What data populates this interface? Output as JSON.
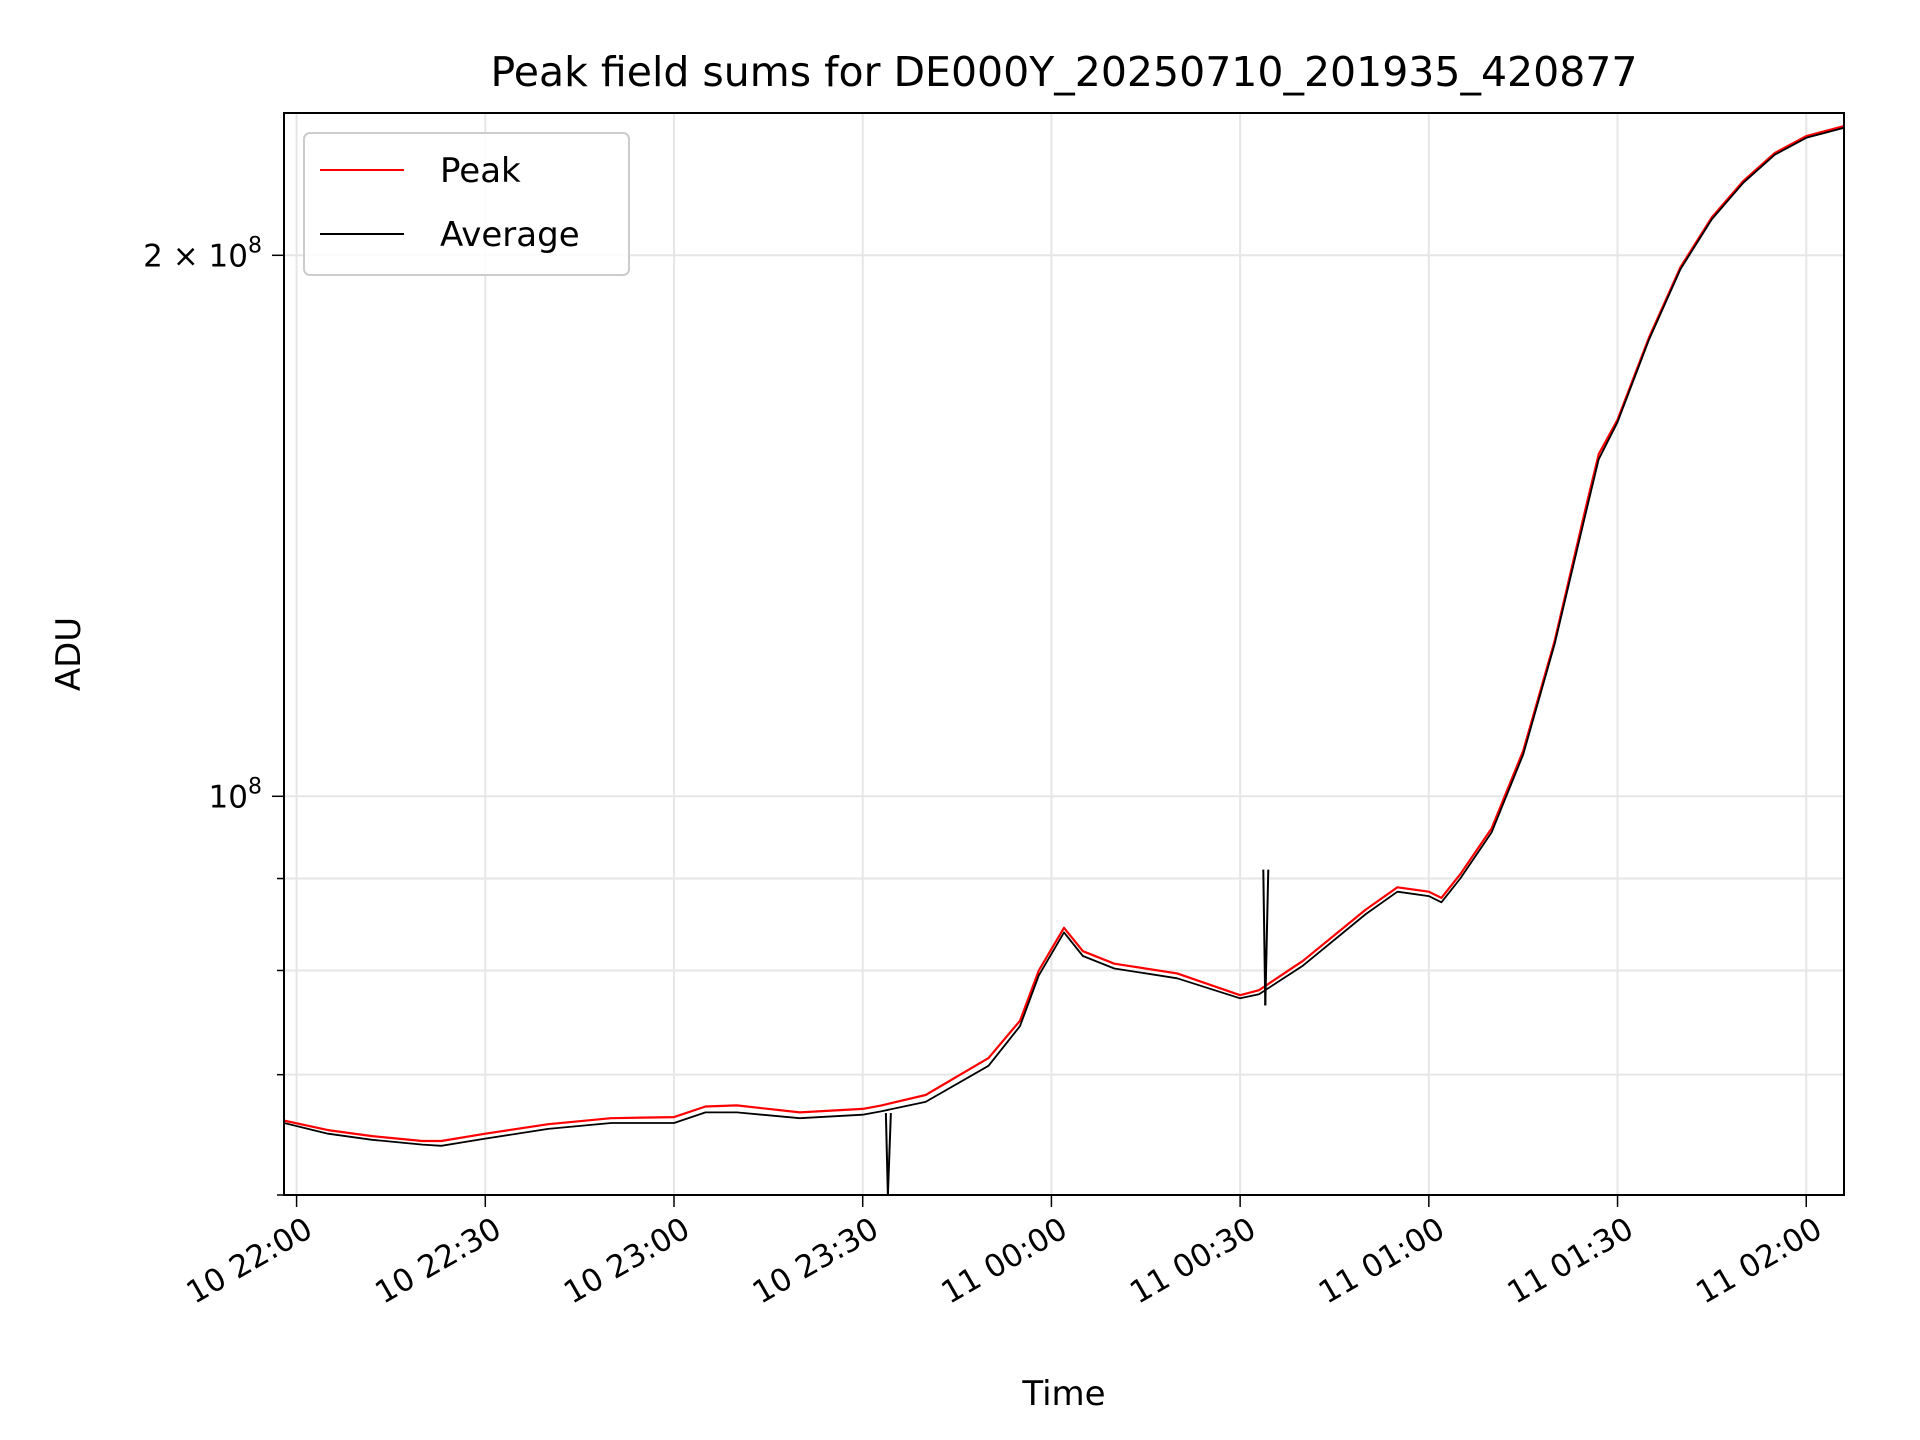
{
  "chart_data": {
    "type": "line",
    "title": "Peak field sums for DE000Y_20250710_201935_420877",
    "xlabel": "Time",
    "ylabel": "ADU",
    "y_scale": "log",
    "ylim": [
      60000000,
      240000000
    ],
    "xlim": [
      "10 21:58",
      "11 02:06"
    ],
    "grid": true,
    "legend_position": "upper-left",
    "x_ticks": [
      {
        "value": "10 22:00",
        "label": "10 22:00"
      },
      {
        "value": "10 22:30",
        "label": "10 22:30"
      },
      {
        "value": "10 23:00",
        "label": "10 23:00"
      },
      {
        "value": "10 23:30",
        "label": "10 23:30"
      },
      {
        "value": "11 00:00",
        "label": "11 00:00"
      },
      {
        "value": "11 00:30",
        "label": "11 00:30"
      },
      {
        "value": "11 01:00",
        "label": "11 01:00"
      },
      {
        "value": "11 01:30",
        "label": "11 01:30"
      },
      {
        "value": "11 02:00",
        "label": "11 02:00"
      }
    ],
    "y_ticks": [
      {
        "value": 200000000,
        "label": "2 × 10",
        "exp": "8"
      },
      {
        "value": 100000000,
        "label": "10",
        "exp": "8"
      }
    ],
    "y_minor_ticks": [
      60000000,
      70000000,
      80000000,
      90000000
    ],
    "series": [
      {
        "name": "Peak",
        "color": "#ff0000",
        "x": [
          "10 21:58",
          "10 22:05",
          "10 22:12",
          "10 22:20",
          "10 22:23",
          "10 22:30",
          "10 22:40",
          "10 22:50",
          "10 23:00",
          "10 23:05",
          "10 23:10",
          "10 23:20",
          "10 23:30",
          "10 23:33",
          "10 23:40",
          "10 23:50",
          "10 23:55",
          "10 23:58",
          "11 00:02",
          "11 00:05",
          "11 00:10",
          "11 00:20",
          "11 00:30",
          "11 00:33",
          "11 00:40",
          "11 00:50",
          "11 00:55",
          "11 01:00",
          "11 01:02",
          "11 01:05",
          "11 01:10",
          "11 01:15",
          "11 01:20",
          "11 01:25",
          "11 01:27",
          "11 01:30",
          "11 01:35",
          "11 01:40",
          "11 01:45",
          "11 01:50",
          "11 01:55",
          "11 02:00",
          "11 02:06"
        ],
        "y": [
          66000000,
          65200000,
          64700000,
          64300000,
          64300000,
          64900000,
          65700000,
          66200000,
          66300000,
          67200000,
          67300000,
          66700000,
          67000000,
          67300000,
          68200000,
          71500000,
          75000000,
          80000000,
          84500000,
          82000000,
          80700000,
          79700000,
          77500000,
          78000000,
          81000000,
          86500000,
          89000000,
          88500000,
          87800000,
          90500000,
          96000000,
          106000000,
          122000000,
          145000000,
          155000000,
          162000000,
          180000000,
          197000000,
          210000000,
          220000000,
          228000000,
          233000000,
          236000000
        ]
      },
      {
        "name": "Average",
        "color": "#000000",
        "x": [
          "10 21:58",
          "10 22:05",
          "10 22:12",
          "10 22:20",
          "10 22:23",
          "10 22:30",
          "10 22:40",
          "10 22:50",
          "10 23:00",
          "10 23:05",
          "10 23:10",
          "10 23:20",
          "10 23:30",
          "10 23:33",
          "10 23:40",
          "10 23:50",
          "10 23:55",
          "10 23:58",
          "11 00:02",
          "11 00:05",
          "11 00:10",
          "11 00:20",
          "11 00:30",
          "11 00:33",
          "11 00:40",
          "11 00:50",
          "11 00:55",
          "11 01:00",
          "11 01:02",
          "11 01:05",
          "11 01:10",
          "11 01:15",
          "11 01:20",
          "11 01:25",
          "11 01:27",
          "11 01:30",
          "11 01:35",
          "11 01:40",
          "11 01:45",
          "11 01:50",
          "11 01:55",
          "11 02:00",
          "11 02:06"
        ],
        "y": [
          65800000,
          64900000,
          64400000,
          64000000,
          63900000,
          64500000,
          65300000,
          65800000,
          65800000,
          66700000,
          66700000,
          66200000,
          66500000,
          66800000,
          67600000,
          70800000,
          74500000,
          79500000,
          84000000,
          81500000,
          80200000,
          79200000,
          77200000,
          77600000,
          80500000,
          86000000,
          88500000,
          88000000,
          87300000,
          90000000,
          95500000,
          105500000,
          121500000,
          144000000,
          154000000,
          161500000,
          179500000,
          196500000,
          209500000,
          219500000,
          227500000,
          232500000,
          235500000
        ]
      }
    ],
    "annotations": [
      {
        "series": "Average",
        "x": "10 23:34",
        "y": 56000000,
        "note": "sharp dip"
      },
      {
        "series": "Average",
        "x": "11 00:34",
        "y": 76500000,
        "note": "small dip"
      }
    ]
  }
}
